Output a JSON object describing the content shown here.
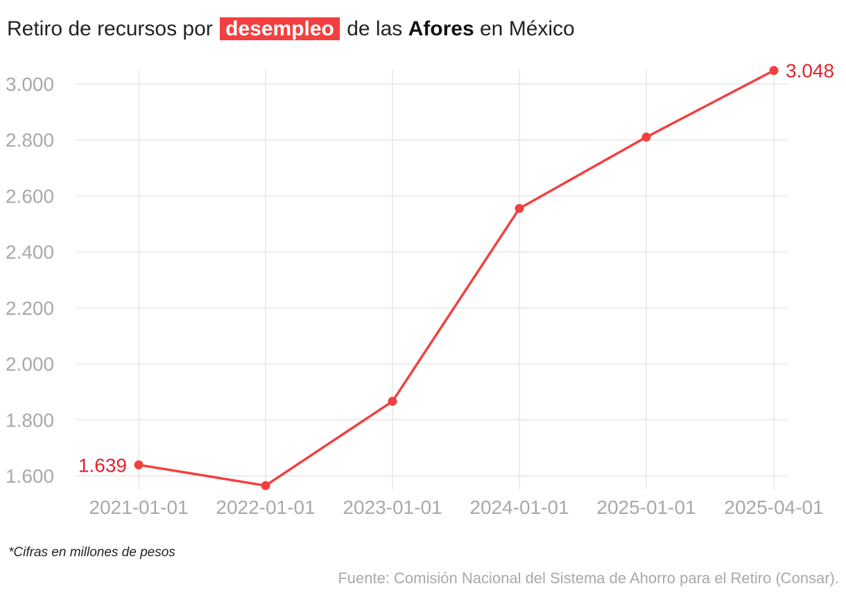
{
  "title": {
    "prefix": "Retiro de recursos por",
    "highlight": "desempleo",
    "middle": "de las",
    "bold": "Afores",
    "suffix": "en México"
  },
  "footnote": "*Cifras en millones de pesos",
  "source": "Fuente: Comisión Nacional del Sistema de Ahorro para el Retiro (Consar).",
  "colors": {
    "line": "#f24040",
    "label": "#e0232f",
    "grid": "#e6e6e6",
    "tick": "#a8a8a8"
  },
  "chart_data": {
    "type": "line",
    "categories": [
      "2021-01-01",
      "2022-01-01",
      "2023-01-01",
      "2024-01-01",
      "2025-01-01",
      "2025-04-01"
    ],
    "series": [
      {
        "values": [
          1639,
          1565,
          1866,
          2555,
          2810,
          3048
        ]
      }
    ],
    "yticks": [
      1600,
      1800,
      2000,
      2200,
      2400,
      2600,
      2800,
      3000
    ],
    "ytick_labels": [
      "1.600",
      "1.800",
      "2.000",
      "2.200",
      "2.400",
      "2.600",
      "2.800",
      "3.000"
    ],
    "ylim": [
      1600,
      3000
    ],
    "data_labels": [
      {
        "index": 0,
        "text": "1.639"
      },
      {
        "index": 5,
        "text": "3.048"
      }
    ],
    "grid": true
  }
}
